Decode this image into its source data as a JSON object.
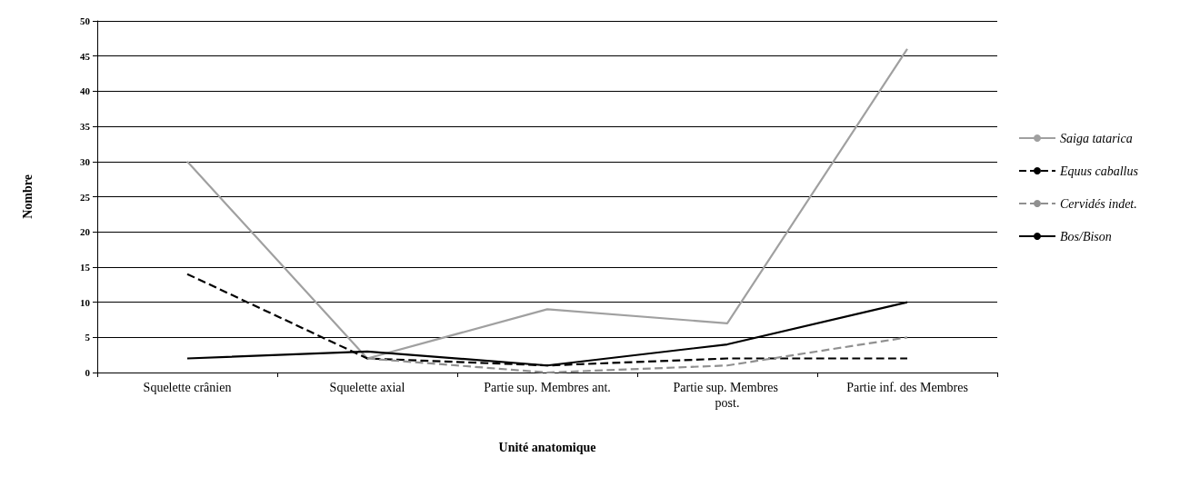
{
  "chart_data": {
    "type": "line",
    "xlabel": "Unité anatomique",
    "ylabel": "Nombre",
    "categories": [
      "Squelette crânien",
      "Squelette axial",
      "Partie sup. Membres ant.",
      "Partie sup. Membres post.",
      "Partie inf. des Membres"
    ],
    "series": [
      {
        "name": "Saiga tatarica",
        "color": "#a0a0a0",
        "values": [
          30,
          2,
          9,
          7,
          46
        ],
        "line_style": "solid"
      },
      {
        "name": "Equus caballus",
        "color": "#000000",
        "values": [
          14,
          2,
          1,
          2,
          2
        ],
        "line_style": "dashed"
      },
      {
        "name": "Cervidés indet.",
        "color": "#909090",
        "values": [
          null,
          2,
          0,
          1,
          5
        ],
        "line_style": "dashed"
      },
      {
        "name": "Bos/Bison",
        "color": "#000000",
        "values": [
          2,
          3,
          1,
          4,
          10
        ],
        "line_style": "solid"
      }
    ],
    "ylim": [
      0,
      50
    ],
    "yticks": [
      0,
      5,
      10,
      15,
      20,
      25,
      30,
      35,
      40,
      45,
      50
    ],
    "grid": "y",
    "legend": "right",
    "marker": "none"
  }
}
